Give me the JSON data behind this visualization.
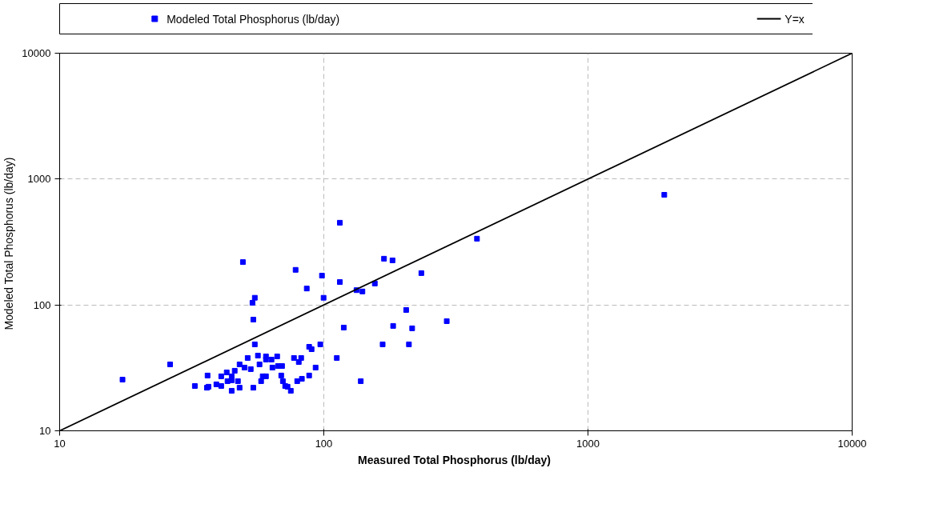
{
  "chart_data": {
    "type": "scatter",
    "xlabel": "Measured Total Phosphorus  (lb/day)",
    "ylabel": "Modeled Total Phosphorus  (lb/day)",
    "log": "xy",
    "xlim": [
      10,
      10000
    ],
    "ylim": [
      10,
      10000
    ],
    "xticks": [
      10,
      100,
      1000,
      10000
    ],
    "yticks": [
      10,
      100,
      1000,
      10000
    ],
    "grid": true,
    "legend": "top",
    "series": [
      {
        "name": "Modeled Total Phosphorus  (lb/day)",
        "color": "#0000ff",
        "marker": "square",
        "x": [
          17.3,
          26.2,
          49.4,
          78.2,
          86.2,
          54.8,
          53.7,
          54.1,
          54.8,
          56.3,
          51.5,
          60.4,
          60.4,
          63.4,
          66.6,
          57.1,
          48.0,
          50.1,
          52.9,
          63.9,
          67.1,
          69.5,
          77.1,
          82.1,
          80.4,
          88.0,
          89.9,
          93.1,
          88.0,
          82.6,
          79.3,
          36.3,
          40.9,
          42.9,
          44.8,
          46.0,
          58.7,
          60.4,
          69.0,
          70.0,
          71.4,
          72.9,
          75.0,
          32.5,
          36.1,
          36.6,
          39.2,
          40.9,
          43.2,
          44.8,
          47.3,
          48.0,
          44.8,
          54.1,
          57.9,
          115,
          169,
          182,
          380,
          234,
          98.4,
          115,
          156,
          133,
          140,
          99.8,
          205,
          292,
          119,
          183,
          216,
          97.0,
          167,
          210,
          112,
          138,
          1945
        ],
        "values": [
          25.5,
          33.7,
          219,
          190,
          135,
          114,
          104,
          76.5,
          48.6,
          39.6,
          37.9,
          39.0,
          36.8,
          36.8,
          39.0,
          33.7,
          33.7,
          31.8,
          30.9,
          31.8,
          32.7,
          32.7,
          37.9,
          37.9,
          35.2,
          46.5,
          44.5,
          31.8,
          27.5,
          25.9,
          24.8,
          27.5,
          27.1,
          29.1,
          27.1,
          30.0,
          27.1,
          27.1,
          27.5,
          24.8,
          22.7,
          22.4,
          20.8,
          22.7,
          22.0,
          22.4,
          23.4,
          22.7,
          24.8,
          25.2,
          24.8,
          22.0,
          20.8,
          22.0,
          24.8,
          450,
          233,
          226,
          336,
          179,
          171,
          152,
          148,
          131,
          128,
          114,
          91.2,
          74.3,
          66.1,
          68.1,
          65.2,
          48.6,
          48.6,
          48.6,
          37.9,
          24.8,
          750
        ]
      },
      {
        "type": "line",
        "name": "Y=x",
        "color": "#000000",
        "line_style": "solid",
        "x": [
          10,
          10000
        ],
        "values": [
          10,
          10000
        ]
      }
    ]
  }
}
